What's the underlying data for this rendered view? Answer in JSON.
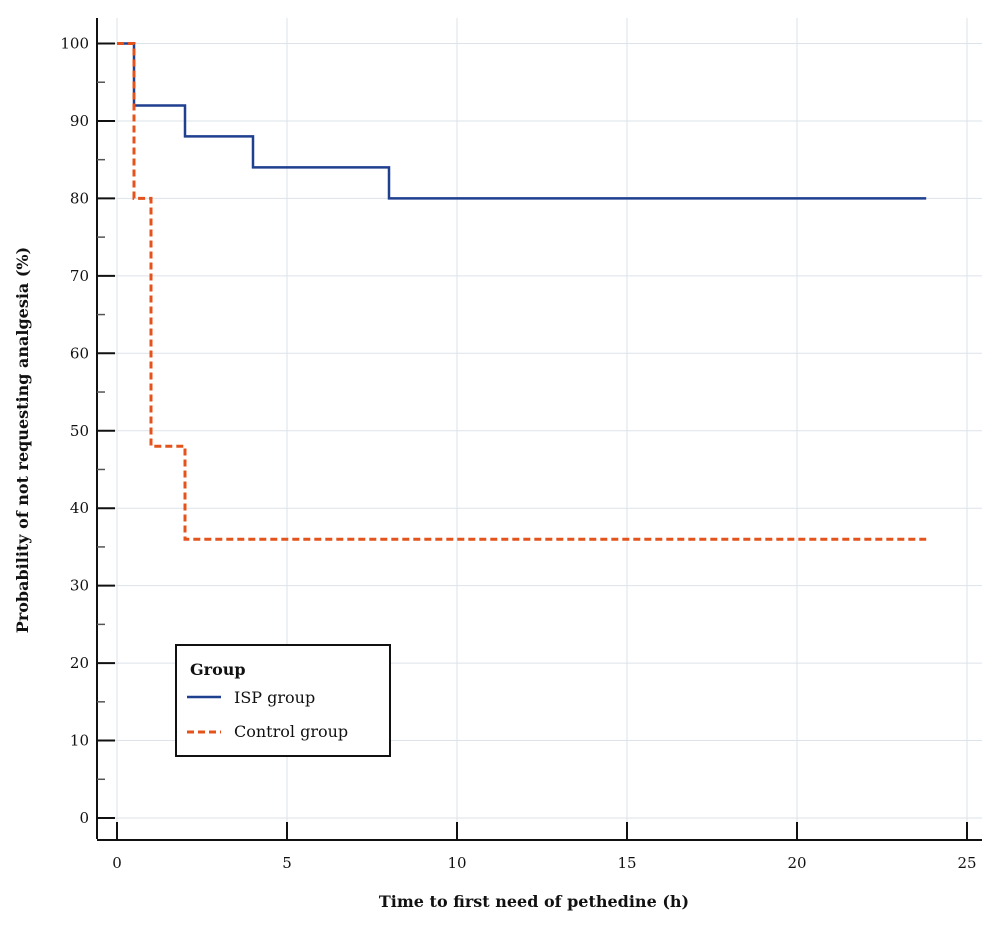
{
  "chart_data": {
    "type": "line",
    "step": true,
    "xlabel": "Time to first need of pethedine (h)",
    "ylabel": "Probability of not requesting analgesia (%)",
    "xlim": [
      -1,
      25.5
    ],
    "ylim": [
      -3,
      103
    ],
    "xticks": [
      0,
      5,
      10,
      15,
      20,
      25
    ],
    "yticks": [
      0,
      10,
      20,
      30,
      40,
      50,
      60,
      70,
      80,
      90,
      100
    ],
    "y_minor_ticks": [
      5,
      15,
      25,
      35,
      45,
      55,
      65,
      75,
      85,
      95
    ],
    "grid": true,
    "legend": {
      "title": "Group",
      "placement": "lower-left"
    },
    "series": [
      {
        "name": "ISP group",
        "color": "#1f3f8f",
        "dash": "solid",
        "points": [
          [
            0,
            100
          ],
          [
            0.5,
            100
          ],
          [
            0.5,
            92
          ],
          [
            2,
            92
          ],
          [
            2,
            88
          ],
          [
            4,
            88
          ],
          [
            4,
            84
          ],
          [
            8,
            84
          ],
          [
            8,
            80
          ],
          [
            23.8,
            80
          ]
        ]
      },
      {
        "name": "Control group",
        "color": "#e4531b",
        "dash": "dashed",
        "points": [
          [
            0,
            100
          ],
          [
            0.5,
            100
          ],
          [
            0.5,
            80
          ],
          [
            1,
            80
          ],
          [
            1,
            48
          ],
          [
            2,
            48
          ],
          [
            2,
            36
          ],
          [
            23.8,
            36
          ]
        ]
      }
    ]
  }
}
